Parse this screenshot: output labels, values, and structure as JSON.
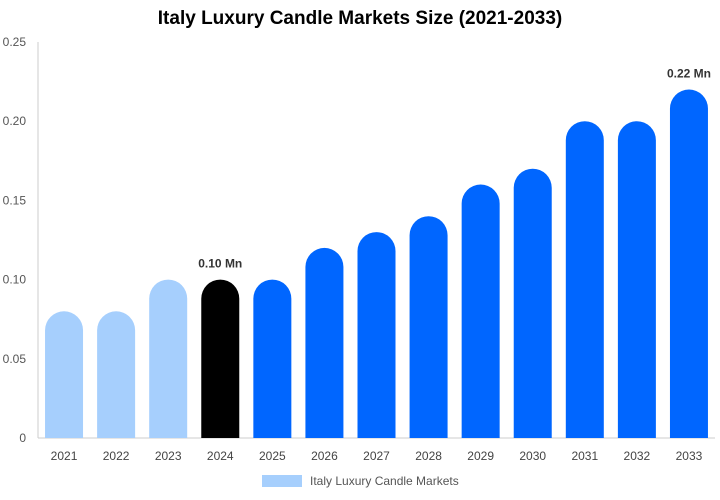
{
  "chart_data": {
    "type": "bar",
    "title": "Italy Luxury Candle Markets Size (2021-2033)",
    "categories": [
      "2021",
      "2022",
      "2023",
      "2024",
      "2025",
      "2026",
      "2027",
      "2028",
      "2029",
      "2030",
      "2031",
      "2032",
      "2033"
    ],
    "series": [
      {
        "name": "Italy Luxury Candle Markets",
        "values": [
          0.08,
          0.08,
          0.1,
          0.1,
          0.1,
          0.12,
          0.13,
          0.14,
          0.16,
          0.17,
          0.2,
          0.2,
          0.22
        ]
      }
    ],
    "ylim": [
      0,
      0.25
    ],
    "yticks": [
      "0",
      "0.05",
      "0.10",
      "0.15",
      "0.20",
      "0.25"
    ],
    "ytick_values": [
      0,
      0.05,
      0.1,
      0.15,
      0.2,
      0.25
    ],
    "data_labels": [
      {
        "category": "2024",
        "text": "0.10 Mn"
      },
      {
        "category": "2033",
        "text": "0.22 Mn"
      }
    ],
    "colors": {
      "historical": "#a6cffd",
      "base_year": "#000000",
      "forecast": "#0066ff"
    },
    "color_groups": {
      "historical": [
        "2021",
        "2022",
        "2023"
      ],
      "base_year": [
        "2024"
      ],
      "forecast": [
        "2025",
        "2026",
        "2027",
        "2028",
        "2029",
        "2030",
        "2031",
        "2032",
        "2033"
      ]
    },
    "legend_position": "bottom",
    "grid": false
  }
}
